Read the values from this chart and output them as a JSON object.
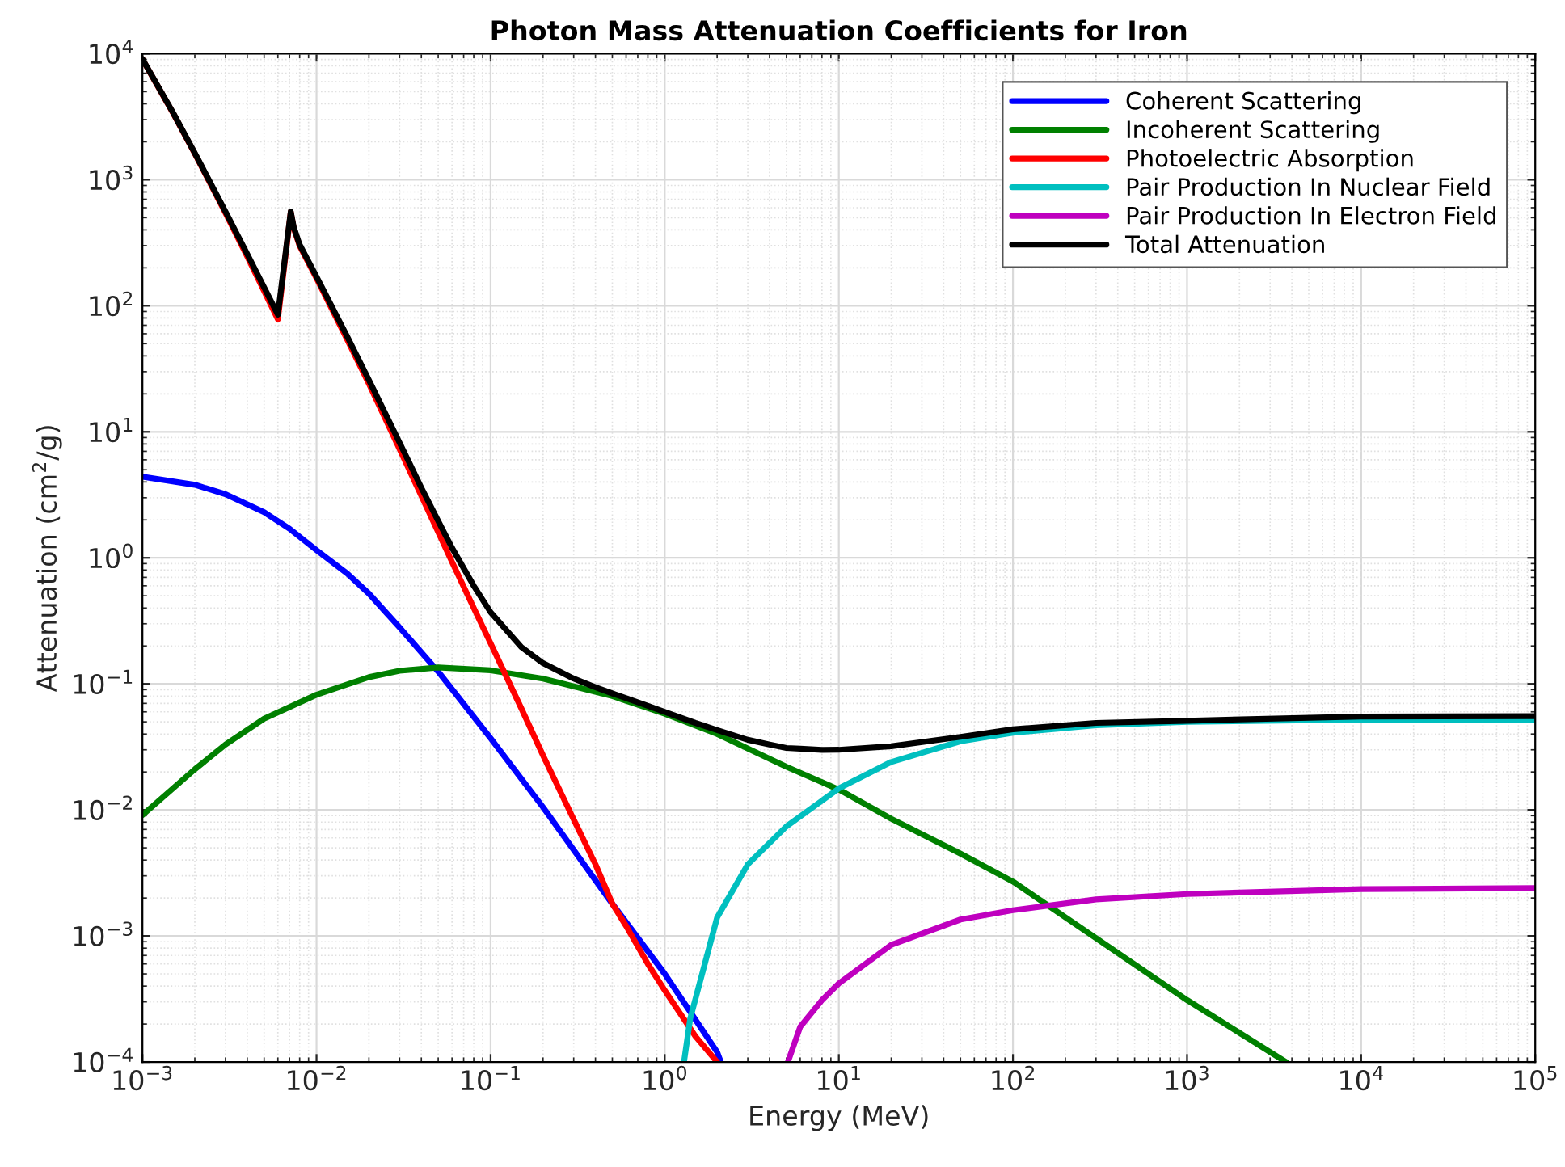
{
  "chart_data": {
    "type": "line",
    "title": "Photon Mass Attenuation Coefficients for Iron",
    "xlabel": "Energy (MeV)",
    "ylabel": "Attenuation (cm$^{2}$/g)",
    "log": "xy",
    "grid": true,
    "legend": "top right",
    "xlim": [
      0.001,
      100000
    ],
    "ylim": [
      0.0001,
      10000
    ],
    "xticks": [
      {
        "value": 0.001,
        "label": "10$^{−3}$"
      },
      {
        "value": 0.01,
        "label": "10$^{−2}$"
      },
      {
        "value": 0.1,
        "label": "10$^{−1}$"
      },
      {
        "value": 1,
        "label": "10$^{0}$"
      },
      {
        "value": 10,
        "label": "10$^{1}$"
      },
      {
        "value": 100,
        "label": "10$^{2}$"
      },
      {
        "value": 1000,
        "label": "10$^{3}$"
      },
      {
        "value": 10000,
        "label": "10$^{4}$"
      },
      {
        "value": 100000,
        "label": "10$^{5}$"
      }
    ],
    "yticks": [
      {
        "value": 0.0001,
        "label": "10$^{−4}$"
      },
      {
        "value": 0.001,
        "label": "10$^{−3}$"
      },
      {
        "value": 0.01,
        "label": "10$^{−2}$"
      },
      {
        "value": 0.1,
        "label": "10$^{−1}$"
      },
      {
        "value": 1,
        "label": "10$^{0}$"
      },
      {
        "value": 10,
        "label": "10$^{1}$"
      },
      {
        "value": 100,
        "label": "10$^{2}$"
      },
      {
        "value": 1000,
        "label": "10$^{3}$"
      },
      {
        "value": 10000,
        "label": "10$^{4}$"
      }
    ],
    "series": [
      {
        "name": "Coherent Scattering",
        "color": "#0000ff",
        "x": [
          0.001,
          0.002,
          0.003,
          0.005,
          0.007,
          0.01,
          0.015,
          0.02,
          0.03,
          0.05,
          0.1,
          0.2,
          0.5,
          1,
          2,
          2.1
        ],
        "values": [
          4.4,
          3.8,
          3.2,
          2.3,
          1.7,
          1.15,
          0.75,
          0.52,
          0.28,
          0.125,
          0.037,
          0.0105,
          0.0018,
          0.0005,
          0.00012,
          0.0001
        ]
      },
      {
        "name": "Incoherent Scattering",
        "color": "#008000",
        "x": [
          0.001,
          0.002,
          0.003,
          0.005,
          0.01,
          0.02,
          0.03,
          0.05,
          0.1,
          0.2,
          0.5,
          1,
          2,
          5,
          10,
          20,
          50,
          100,
          1000,
          3700
        ],
        "values": [
          0.0091,
          0.021,
          0.033,
          0.053,
          0.082,
          0.113,
          0.127,
          0.135,
          0.128,
          0.11,
          0.08,
          0.058,
          0.04,
          0.022,
          0.0145,
          0.0085,
          0.0045,
          0.0027,
          0.00031,
          0.0001
        ]
      },
      {
        "name": "Photoelectric Absorption",
        "color": "#ff0000",
        "x": [
          0.001,
          0.0015,
          0.002,
          0.003,
          0.004,
          0.005,
          0.006,
          0.007112,
          0.0074,
          0.008,
          0.01,
          0.015,
          0.02,
          0.03,
          0.04,
          0.05,
          0.06,
          0.08,
          0.1,
          0.15,
          0.2,
          0.3,
          0.4,
          0.5,
          0.6,
          0.8,
          1,
          1.5,
          2
        ],
        "values": [
          9052,
          3378,
          1610,
          545,
          246,
          131,
          78,
          555,
          412,
          298,
          165,
          54,
          24,
          7.3,
          3.1,
          1.6,
          0.93,
          0.4,
          0.21,
          0.064,
          0.027,
          0.0084,
          0.0037,
          0.0018,
          0.0012,
          0.0006,
          0.00037,
          0.00016,
          0.0001
        ]
      },
      {
        "name": "Pair Production In Nuclear Field",
        "color": "#00bfbf",
        "x": [
          1.29,
          1.4,
          2,
          3,
          5,
          10,
          20,
          50,
          100,
          300,
          1000,
          10000,
          100000
        ],
        "values": [
          0.0001,
          0.00022,
          0.0014,
          0.0037,
          0.0074,
          0.0148,
          0.024,
          0.035,
          0.041,
          0.047,
          0.05,
          0.052,
          0.052
        ]
      },
      {
        "name": "Pair Production In Electron Field",
        "color": "#bf00bf",
        "x": [
          5.1,
          6,
          8,
          10,
          20,
          50,
          100,
          300,
          1000,
          10000,
          100000
        ],
        "values": [
          0.0001,
          0.00019,
          0.00031,
          0.00042,
          0.00085,
          0.00135,
          0.0016,
          0.00195,
          0.00215,
          0.00235,
          0.0024
        ]
      },
      {
        "name": "Total Attenuation",
        "color": "#000000",
        "x": [
          0.001,
          0.0015,
          0.002,
          0.003,
          0.004,
          0.005,
          0.006,
          0.007112,
          0.0074,
          0.008,
          0.01,
          0.015,
          0.02,
          0.03,
          0.04,
          0.05,
          0.06,
          0.08,
          0.1,
          0.15,
          0.2,
          0.3,
          0.4,
          0.5,
          0.6,
          0.8,
          1,
          1.5,
          2,
          3,
          4,
          5,
          6,
          8,
          10,
          20,
          50,
          100,
          300,
          1000,
          10000,
          100000
        ],
        "values": [
          9085,
          3399,
          1626,
          557.6,
          256.7,
          139.8,
          85,
          560,
          420,
          305,
          170,
          57,
          25.7,
          8.2,
          3.6,
          1.96,
          1.2,
          0.6,
          0.37,
          0.196,
          0.146,
          0.11,
          0.094,
          0.084,
          0.077,
          0.067,
          0.06,
          0.049,
          0.043,
          0.036,
          0.033,
          0.031,
          0.0306,
          0.0299,
          0.03,
          0.032,
          0.038,
          0.0436,
          0.049,
          0.051,
          0.055,
          0.0555
        ]
      }
    ]
  }
}
